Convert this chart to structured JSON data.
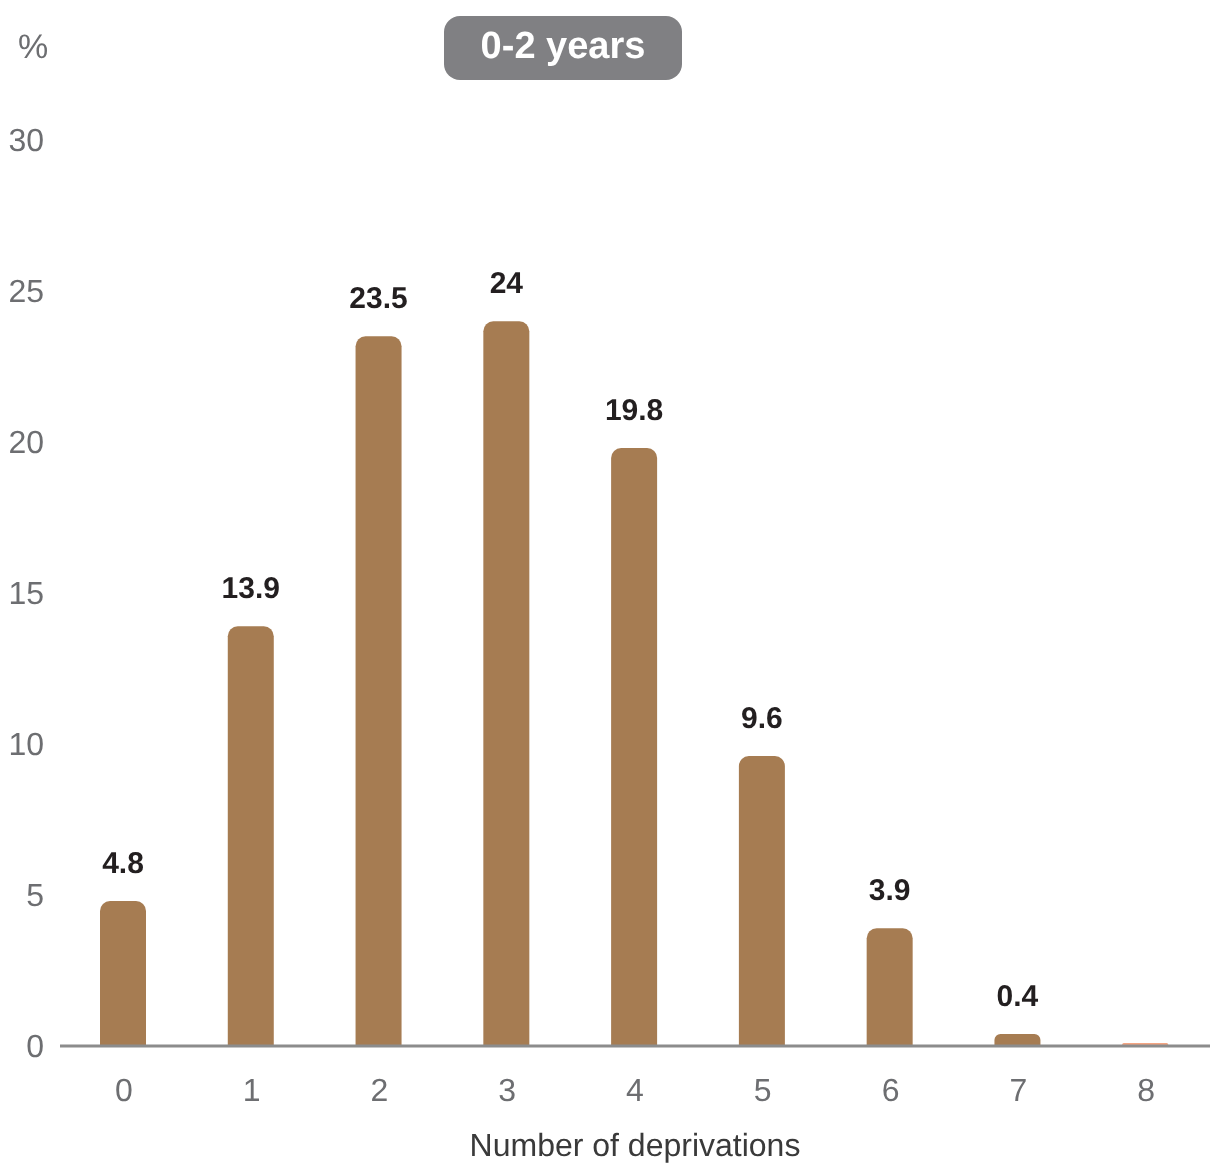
{
  "chart_data": {
    "type": "bar",
    "title": "0-2 years",
    "ylabel": "%",
    "xlabel": "Number of deprivations",
    "categories": [
      "0",
      "1",
      "2",
      "3",
      "4",
      "5",
      "6",
      "7",
      "8"
    ],
    "values": [
      4.8,
      13.9,
      23.5,
      24,
      19.8,
      9.6,
      3.9,
      0.4,
      0.1
    ],
    "colors": [
      "#a67c52",
      "#a67c52",
      "#a67c52",
      "#a67c52",
      "#a67c52",
      "#a67c52",
      "#a67c52",
      "#a67c52",
      "#f4a582"
    ],
    "value_labels": [
      "4.8",
      "13.9",
      "23.5",
      "24",
      "19.8",
      "9.6",
      "3.9",
      "0.4",
      null
    ],
    "ylim": [
      0,
      30
    ],
    "yticks": [
      0,
      5,
      10,
      15,
      20,
      25,
      30
    ]
  }
}
